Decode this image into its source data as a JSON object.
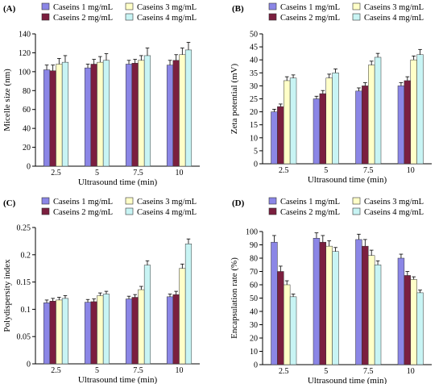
{
  "chart_data": [
    {
      "type": "bar",
      "panel_label": "(A)",
      "xlabel": "Ultrasound time (min)",
      "ylabel": "Micelle size (nm)",
      "categories": [
        "2.5",
        "5",
        "7.5",
        "10"
      ],
      "ylim": [
        0,
        140
      ],
      "yticks": [
        0,
        20,
        40,
        60,
        80,
        100,
        120,
        140
      ],
      "legend_position": "top",
      "series": [
        {
          "name": "Caseins 1 mg/mL",
          "color": "#8b86e6",
          "values": [
            102,
            104,
            108,
            107
          ],
          "errors": [
            5,
            4,
            4,
            5
          ]
        },
        {
          "name": "Caseins 2 mg/mL",
          "color": "#7b1f3f",
          "values": [
            101,
            108,
            109,
            112
          ],
          "errors": [
            6,
            5,
            4,
            6
          ]
        },
        {
          "name": "Caseins 3 mg/mL",
          "color": "#ffffc8",
          "values": [
            108,
            110,
            112,
            118
          ],
          "errors": [
            6,
            6,
            5,
            7
          ]
        },
        {
          "name": "Caseins 4 mg/mL",
          "color": "#c8f4f4",
          "values": [
            110,
            112,
            117,
            123
          ],
          "errors": [
            7,
            7,
            8,
            8
          ]
        }
      ]
    },
    {
      "type": "bar",
      "panel_label": "(B)",
      "xlabel": "Ultrasound time (min)",
      "ylabel": "Zeta potential (mV)",
      "categories": [
        "2.5",
        "5",
        "7.5",
        "10"
      ],
      "ylim": [
        0,
        50
      ],
      "yticks": [
        0,
        5,
        10,
        15,
        20,
        25,
        30,
        35,
        40,
        45,
        50
      ],
      "legend_position": "top",
      "series": [
        {
          "name": "Caseins 1 mg/mL",
          "color": "#8b86e6",
          "values": [
            20,
            25,
            28,
            30
          ],
          "errors": [
            1,
            1,
            1.2,
            1.2
          ]
        },
        {
          "name": "Caseins 2 mg/mL",
          "color": "#7b1f3f",
          "values": [
            22,
            27,
            30,
            32
          ],
          "errors": [
            1,
            1.2,
            1.2,
            1.5
          ]
        },
        {
          "name": "Caseins 3 mg/mL",
          "color": "#ffffc8",
          "values": [
            32,
            33,
            38,
            40
          ],
          "errors": [
            1.5,
            1.5,
            1.5,
            1.5
          ]
        },
        {
          "name": "Caseins 4 mg/mL",
          "color": "#c8f4f4",
          "values": [
            33,
            35,
            41,
            42
          ],
          "errors": [
            1.2,
            1.5,
            1.5,
            2
          ]
        }
      ]
    },
    {
      "type": "bar",
      "panel_label": "(C)",
      "xlabel": "Ultrasound time (min)",
      "ylabel": "Polydispersity index",
      "categories": [
        "2.5",
        "5",
        "7.5",
        "10"
      ],
      "ylim": [
        0,
        0.25
      ],
      "yticks": [
        0,
        0.05,
        0.1,
        0.15,
        0.2,
        0.25
      ],
      "ytick_labels": [
        "0",
        "0.05",
        "0.1",
        "0.15",
        "0.2",
        "0.25"
      ],
      "legend_position": "top",
      "series": [
        {
          "name": "Caseins 1 mg/mL",
          "color": "#8b86e6",
          "values": [
            0.112,
            0.113,
            0.119,
            0.123
          ],
          "errors": [
            0.005,
            0.005,
            0.005,
            0.005
          ]
        },
        {
          "name": "Caseins 2 mg/mL",
          "color": "#7b1f3f",
          "values": [
            0.115,
            0.114,
            0.122,
            0.127
          ],
          "errors": [
            0.005,
            0.005,
            0.005,
            0.006
          ]
        },
        {
          "name": "Caseins 3 mg/mL",
          "color": "#ffffc8",
          "values": [
            0.117,
            0.125,
            0.136,
            0.175
          ],
          "errors": [
            0.005,
            0.005,
            0.006,
            0.008
          ]
        },
        {
          "name": "Caseins 4 mg/mL",
          "color": "#c8f4f4",
          "values": [
            0.12,
            0.128,
            0.181,
            0.22
          ],
          "errors": [
            0.005,
            0.005,
            0.008,
            0.009
          ]
        }
      ]
    },
    {
      "type": "bar",
      "panel_label": "(D)",
      "xlabel": "Ultrasound time (min)",
      "ylabel": "Encapsulation rate (%)",
      "categories": [
        "2.5",
        "5",
        "7.5",
        "10"
      ],
      "ylim": [
        0,
        100
      ],
      "yticks": [
        0,
        10,
        20,
        30,
        40,
        50,
        60,
        70,
        80,
        90,
        100
      ],
      "legend_position": "top",
      "series": [
        {
          "name": "Caseins 1 mg/mL",
          "color": "#8b86e6",
          "values": [
            92,
            95,
            94,
            80
          ],
          "errors": [
            5,
            4,
            4,
            3
          ]
        },
        {
          "name": "Caseins 2 mg/mL",
          "color": "#7b1f3f",
          "values": [
            70,
            92,
            89,
            67
          ],
          "errors": [
            4,
            5,
            5,
            3
          ]
        },
        {
          "name": "Caseins 3 mg/mL",
          "color": "#ffffc8",
          "values": [
            60,
            89,
            82,
            64
          ],
          "errors": [
            3,
            4,
            4,
            2
          ]
        },
        {
          "name": "Caseins 4 mg/mL",
          "color": "#c8f4f4",
          "values": [
            51,
            85,
            75,
            54
          ],
          "errors": [
            2,
            3,
            3,
            2
          ]
        }
      ]
    }
  ]
}
